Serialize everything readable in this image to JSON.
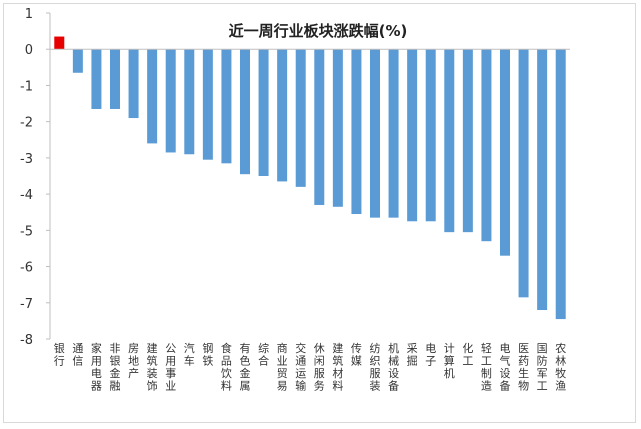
{
  "chart_data": {
    "type": "bar",
    "title": "近一周行业板块涨跌幅(%)",
    "xlabel": "",
    "ylabel": "",
    "ylim": [
      -8,
      1
    ],
    "yticks": [
      1,
      0,
      -1,
      -2,
      -3,
      -4,
      -5,
      -6,
      -7,
      -8
    ],
    "grid": false,
    "legend": "none",
    "categories": [
      "银行",
      "通信",
      "家用电器",
      "非银金融",
      "房地产",
      "建筑装饰",
      "公用事业",
      "汽车",
      "钢铁",
      "食品饮料",
      "有色金属",
      "综合",
      "商业贸易",
      "交通运输",
      "休闲服务",
      "建筑材料",
      "传媒",
      "纺织服装",
      "机械设备",
      "采掘",
      "电子",
      "计算机",
      "化工",
      "轻工制造",
      "电气设备",
      "医药生物",
      "国防军工",
      "农林牧渔"
    ],
    "values": [
      0.35,
      -0.65,
      -1.65,
      -1.65,
      -1.9,
      -2.6,
      -2.85,
      -2.9,
      -3.05,
      -3.15,
      -3.45,
      -3.5,
      -3.65,
      -3.8,
      -4.3,
      -4.35,
      -4.55,
      -4.65,
      -4.65,
      -4.75,
      -4.75,
      -5.05,
      -5.05,
      -5.3,
      -5.7,
      -6.85,
      -7.2,
      -7.45
    ],
    "colors": {
      "positive": "#e60000",
      "negative": "#5b9bd5",
      "axis": "#bfbfbf"
    }
  }
}
